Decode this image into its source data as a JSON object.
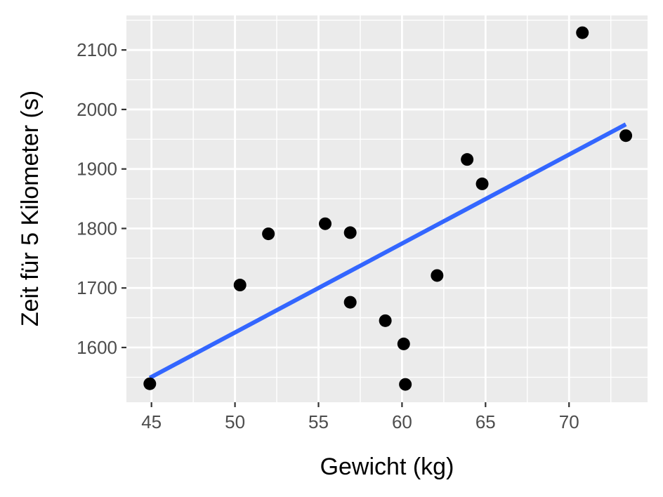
{
  "chart_data": {
    "type": "scatter",
    "title": "",
    "xlabel": "Gewicht (kg)",
    "ylabel": "Zeit für 5 Kilometer (s)",
    "xlim": [
      43.5,
      74.7
    ],
    "ylim": [
      1508,
      2158
    ],
    "xticks": [
      45,
      50,
      55,
      60,
      65,
      70
    ],
    "yticks": [
      1600,
      1700,
      1800,
      1900,
      2000,
      2100
    ],
    "grid": true,
    "legend": "none",
    "series": [
      {
        "points": [
          {
            "x": 44.9,
            "y": 1539
          },
          {
            "x": 50.3,
            "y": 1705
          },
          {
            "x": 52.0,
            "y": 1791
          },
          {
            "x": 55.4,
            "y": 1808
          },
          {
            "x": 56.9,
            "y": 1793
          },
          {
            "x": 56.9,
            "y": 1676
          },
          {
            "x": 59.0,
            "y": 1645
          },
          {
            "x": 60.1,
            "y": 1606
          },
          {
            "x": 60.2,
            "y": 1538
          },
          {
            "x": 62.1,
            "y": 1721
          },
          {
            "x": 63.9,
            "y": 1916
          },
          {
            "x": 64.8,
            "y": 1875
          },
          {
            "x": 70.8,
            "y": 2129
          },
          {
            "x": 73.4,
            "y": 1956
          }
        ],
        "color": "#000000"
      }
    ],
    "trendline": {
      "x": [
        44.9,
        73.4
      ],
      "y": [
        1549,
        1975
      ],
      "color": "#3366ff"
    },
    "colors": {
      "panel": "#ebebeb",
      "grid": "#ffffff",
      "tick_text": "#4d4d4d",
      "axis_title": "#000000"
    }
  }
}
